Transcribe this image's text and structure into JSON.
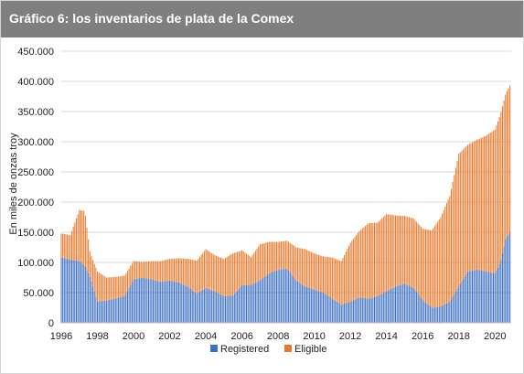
{
  "header": {
    "title": "Gráfico 6: los inventarios de plata de la Comex"
  },
  "colors": {
    "registered": "#3b6fc0",
    "eligible": "#e8782a",
    "header_bg": "#7f7f7f",
    "grid": "#d9d9d9"
  },
  "chart_data": {
    "type": "bar",
    "stacked": true,
    "title": "Gráfico 6: los inventarios de plata de la Comex",
    "xlabel": "",
    "ylabel": "En miles de onzas troy",
    "ylim": [
      0,
      450000
    ],
    "yticks": [
      "0",
      "50.000",
      "100.000",
      "150.000",
      "200.000",
      "250.000",
      "300.000",
      "350.000",
      "400.000",
      "450.000"
    ],
    "yticks_values": [
      0,
      50000,
      100000,
      150000,
      200000,
      250000,
      300000,
      350000,
      400000,
      450000
    ],
    "xlim": [
      1996,
      2020.9
    ],
    "xticks": [
      "1996",
      "1998",
      "2000",
      "2002",
      "2004",
      "2006",
      "2008",
      "2010",
      "2012",
      "2014",
      "2016",
      "2018",
      "2020"
    ],
    "xticks_values": [
      1996,
      1998,
      2000,
      2002,
      2004,
      2006,
      2008,
      2010,
      2012,
      2014,
      2016,
      2018,
      2020
    ],
    "grid": true,
    "legend_position": "bottom",
    "series": [
      {
        "name": "Registered",
        "color": "#3b6fc0",
        "points": [
          [
            1996.0,
            108000
          ],
          [
            1996.5,
            105000
          ],
          [
            1997.0,
            102000
          ],
          [
            1997.3,
            95000
          ],
          [
            1997.6,
            75000
          ],
          [
            1998.0,
            35000
          ],
          [
            1998.5,
            37000
          ],
          [
            1999.0,
            40000
          ],
          [
            1999.5,
            44000
          ],
          [
            2000.0,
            72000
          ],
          [
            2000.5,
            75000
          ],
          [
            2001.0,
            72000
          ],
          [
            2001.5,
            68000
          ],
          [
            2002.0,
            70000
          ],
          [
            2002.5,
            67000
          ],
          [
            2003.0,
            60000
          ],
          [
            2003.5,
            48000
          ],
          [
            2004.0,
            58000
          ],
          [
            2004.5,
            52000
          ],
          [
            2005.0,
            44000
          ],
          [
            2005.5,
            45000
          ],
          [
            2006.0,
            62000
          ],
          [
            2006.5,
            63000
          ],
          [
            2007.0,
            70000
          ],
          [
            2007.5,
            82000
          ],
          [
            2008.0,
            88000
          ],
          [
            2008.5,
            90000
          ],
          [
            2009.0,
            70000
          ],
          [
            2009.5,
            60000
          ],
          [
            2010.0,
            55000
          ],
          [
            2010.5,
            50000
          ],
          [
            2011.0,
            40000
          ],
          [
            2011.5,
            30000
          ],
          [
            2012.0,
            35000
          ],
          [
            2012.5,
            42000
          ],
          [
            2013.0,
            40000
          ],
          [
            2013.5,
            44000
          ],
          [
            2014.0,
            52000
          ],
          [
            2014.5,
            60000
          ],
          [
            2015.0,
            65000
          ],
          [
            2015.5,
            58000
          ],
          [
            2016.0,
            38000
          ],
          [
            2016.5,
            25000
          ],
          [
            2017.0,
            27000
          ],
          [
            2017.5,
            35000
          ],
          [
            2018.0,
            60000
          ],
          [
            2018.5,
            85000
          ],
          [
            2019.0,
            88000
          ],
          [
            2019.5,
            85000
          ],
          [
            2020.0,
            82000
          ],
          [
            2020.3,
            100000
          ],
          [
            2020.6,
            140000
          ],
          [
            2020.9,
            152000
          ]
        ]
      },
      {
        "name": "Eligible",
        "color": "#e8782a",
        "points": [
          [
            1996.0,
            40000
          ],
          [
            1996.5,
            40000
          ],
          [
            1997.0,
            85000
          ],
          [
            1997.3,
            90000
          ],
          [
            1997.6,
            40000
          ],
          [
            1998.0,
            50000
          ],
          [
            1998.5,
            38000
          ],
          [
            1999.0,
            36000
          ],
          [
            1999.5,
            34000
          ],
          [
            2000.0,
            30000
          ],
          [
            2000.5,
            26000
          ],
          [
            2001.0,
            30000
          ],
          [
            2001.5,
            34000
          ],
          [
            2002.0,
            36000
          ],
          [
            2002.5,
            40000
          ],
          [
            2003.0,
            46000
          ],
          [
            2003.5,
            55000
          ],
          [
            2004.0,
            64000
          ],
          [
            2004.5,
            60000
          ],
          [
            2005.0,
            62000
          ],
          [
            2005.5,
            70000
          ],
          [
            2006.0,
            58000
          ],
          [
            2006.5,
            46000
          ],
          [
            2007.0,
            60000
          ],
          [
            2007.5,
            52000
          ],
          [
            2008.0,
            46000
          ],
          [
            2008.5,
            46000
          ],
          [
            2009.0,
            55000
          ],
          [
            2009.5,
            62000
          ],
          [
            2010.0,
            60000
          ],
          [
            2010.5,
            60000
          ],
          [
            2011.0,
            68000
          ],
          [
            2011.5,
            72000
          ],
          [
            2012.0,
            98000
          ],
          [
            2012.5,
            110000
          ],
          [
            2013.0,
            125000
          ],
          [
            2013.5,
            122000
          ],
          [
            2014.0,
            128000
          ],
          [
            2014.5,
            118000
          ],
          [
            2015.0,
            112000
          ],
          [
            2015.5,
            115000
          ],
          [
            2016.0,
            118000
          ],
          [
            2016.5,
            128000
          ],
          [
            2017.0,
            148000
          ],
          [
            2017.5,
            175000
          ],
          [
            2018.0,
            220000
          ],
          [
            2018.5,
            210000
          ],
          [
            2019.0,
            215000
          ],
          [
            2019.5,
            225000
          ],
          [
            2020.0,
            238000
          ],
          [
            2020.3,
            245000
          ],
          [
            2020.6,
            240000
          ],
          [
            2020.9,
            245000
          ]
        ]
      }
    ]
  }
}
